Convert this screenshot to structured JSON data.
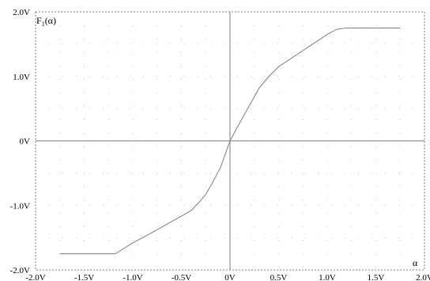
{
  "chart_data": {
    "type": "line",
    "title": "",
    "ylabel": "F",
    "ylabel_sub": "1",
    "ylabel_arg": "(α)",
    "xlabel": "α",
    "xlim": [
      -2.0,
      2.0
    ],
    "ylim": [
      -2.0,
      2.0
    ],
    "x_ticks": [
      -2.0,
      -1.5,
      -1.0,
      -0.5,
      0,
      0.5,
      1.0,
      1.5,
      2.0
    ],
    "x_tick_labels": [
      "-2.0V",
      "-1.5V",
      "-1.0V",
      "-0.5V",
      "0V",
      "0.5V",
      "1.0V",
      "1.5V",
      "2.0V"
    ],
    "y_ticks": [
      -2.0,
      -1.0,
      0,
      1.0,
      2.0
    ],
    "y_tick_labels": [
      "-2.0V",
      "-1.0V",
      "0V",
      "1.0V",
      "2.0V"
    ],
    "grid": "dotted",
    "series": [
      {
        "x": [
          -1.75,
          -1.18,
          -1.0,
          -0.8,
          -0.6,
          -0.4,
          -0.35,
          -0.3,
          -0.25,
          -0.2,
          -0.1,
          0,
          0.1,
          0.2,
          0.3,
          0.4,
          0.5,
          0.6,
          0.7,
          0.8,
          0.9,
          1.0,
          1.1,
          1.2,
          1.3,
          1.4,
          1.5,
          1.6,
          1.75
        ],
        "y": [
          -1.75,
          -1.75,
          -1.58,
          -1.42,
          -1.25,
          -1.08,
          -1.0,
          -0.92,
          -0.83,
          -0.7,
          -0.42,
          0,
          0.28,
          0.55,
          0.82,
          1.0,
          1.15,
          1.25,
          1.35,
          1.45,
          1.55,
          1.65,
          1.73,
          1.75,
          1.75,
          1.75,
          1.75,
          1.75,
          1.75
        ],
        "color": "#7f7f7f"
      }
    ]
  }
}
